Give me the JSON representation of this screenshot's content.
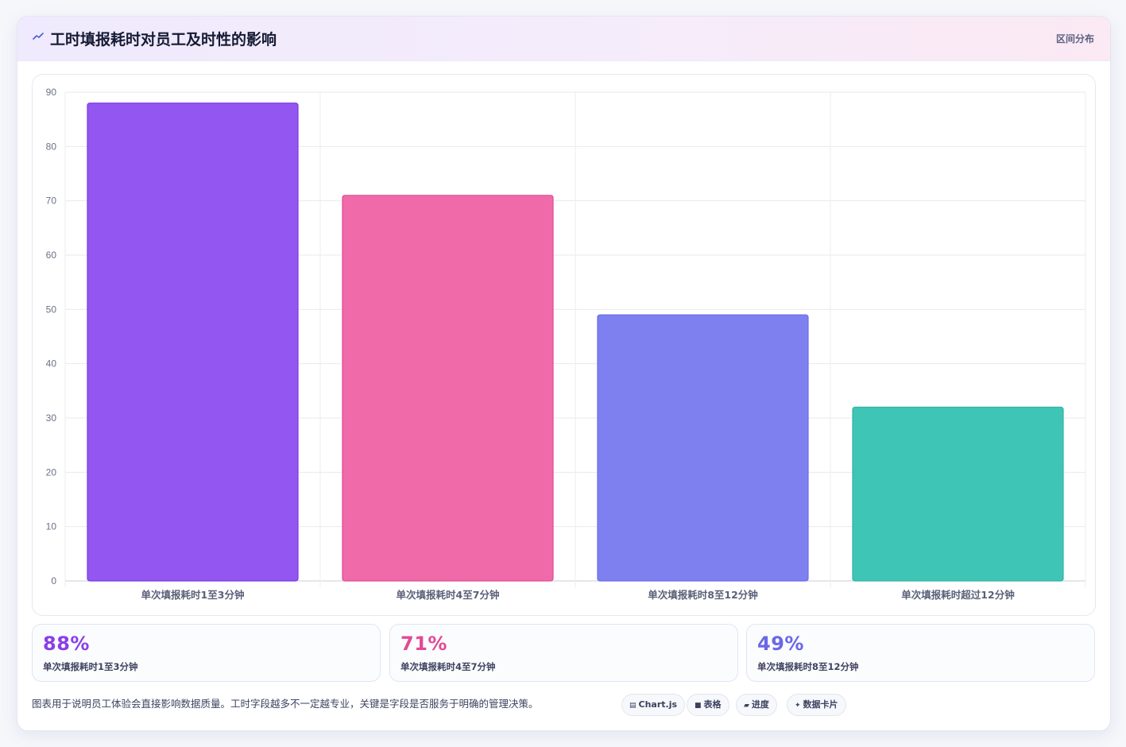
{
  "header": {
    "title": "工时填报耗时对员工及时性的影响",
    "tag": "区间分布",
    "icon": "trend-line-icon"
  },
  "chart_data": {
    "type": "bar",
    "categories": [
      "单次填报耗时1至3分钟",
      "单次填报耗时4至7分钟",
      "单次填报耗时8至12分钟",
      "单次填报耗时超过12分钟"
    ],
    "values": [
      88,
      71,
      49,
      32
    ],
    "colors": [
      "#9356f0",
      "#f06aaa",
      "#7f80f0",
      "#3fc5b5"
    ],
    "border_colors": [
      "#7a3ae0",
      "#e04a92",
      "#6a6be6",
      "#2db3a3"
    ],
    "ylim": [
      0,
      90
    ],
    "yticks": [
      0,
      10,
      20,
      30,
      40,
      50,
      60,
      70,
      80,
      90
    ],
    "grid": true,
    "legend": "none"
  },
  "stats": [
    {
      "value": "88%",
      "label": "单次填报耗时1至3分钟",
      "color": "#8a3fe6"
    },
    {
      "value": "71%",
      "label": "单次填报耗时4至7分钟",
      "color": "#e24a95"
    },
    {
      "value": "49%",
      "label": "单次填报耗时8至12分钟",
      "color": "#6a67e6"
    }
  ],
  "footnote": "图表用于说明员工体验会直接影响数据质量。工时字段越多不一定越专业，关键是字段是否服务于明确的管理决策。",
  "pills": [
    {
      "icon": "chart-icon",
      "glyph": "▤",
      "label": "Chart.js"
    },
    {
      "icon": "table-icon",
      "glyph": "■",
      "label": "表格"
    },
    {
      "icon": "progress-icon",
      "glyph": "▰",
      "label": "进度"
    },
    {
      "icon": "sparkle-icon",
      "glyph": "✦",
      "label": "数据卡片"
    }
  ]
}
